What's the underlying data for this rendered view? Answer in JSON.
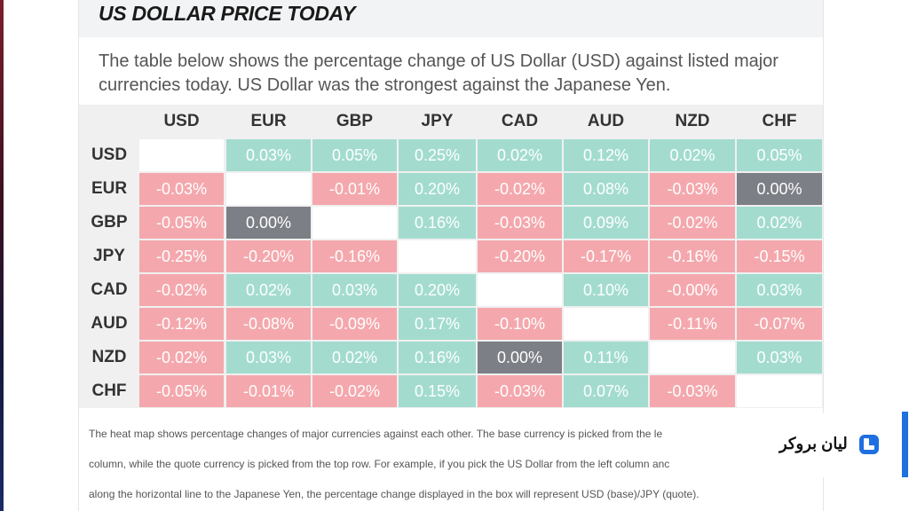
{
  "header": {
    "title": "US DOLLAR PRICE TODAY"
  },
  "intro": "The table below shows the percentage change of US Dollar (USD) against listed major currencies today. US Dollar was the strongest against the Japanese Yen.",
  "heatmap": {
    "columns": [
      "USD",
      "EUR",
      "GBP",
      "JPY",
      "CAD",
      "AUD",
      "NZD",
      "CHF"
    ],
    "rows": [
      {
        "label": "USD",
        "cells": [
          "",
          "0.03%",
          "0.05%",
          "0.25%",
          "0.02%",
          "0.12%",
          "0.02%",
          "0.05%"
        ]
      },
      {
        "label": "EUR",
        "cells": [
          "-0.03%",
          "",
          "-0.01%",
          "0.20%",
          "-0.02%",
          "0.08%",
          "-0.03%",
          "0.00%"
        ]
      },
      {
        "label": "GBP",
        "cells": [
          "-0.05%",
          "0.00%",
          "",
          "0.16%",
          "-0.03%",
          "0.09%",
          "-0.02%",
          "0.02%"
        ]
      },
      {
        "label": "JPY",
        "cells": [
          "-0.25%",
          "-0.20%",
          "-0.16%",
          "",
          "-0.20%",
          "-0.17%",
          "-0.16%",
          "-0.15%"
        ]
      },
      {
        "label": "CAD",
        "cells": [
          "-0.02%",
          "0.02%",
          "0.03%",
          "0.20%",
          "",
          "0.10%",
          "-0.00%",
          "0.03%"
        ]
      },
      {
        "label": "AUD",
        "cells": [
          "-0.12%",
          "-0.08%",
          "-0.09%",
          "0.17%",
          "-0.10%",
          "",
          "-0.11%",
          "-0.07%"
        ]
      },
      {
        "label": "NZD",
        "cells": [
          "-0.02%",
          "0.03%",
          "0.02%",
          "0.16%",
          "0.00%",
          "0.11%",
          "",
          "0.03%"
        ]
      },
      {
        "label": "CHF",
        "cells": [
          "-0.05%",
          "-0.01%",
          "-0.02%",
          "0.15%",
          "-0.03%",
          "0.07%",
          "-0.03%",
          ""
        ]
      }
    ],
    "colors": {
      "positive": "#a3dccf",
      "negative": "#f4a8ad",
      "zero": "#7d7f86"
    }
  },
  "footer": {
    "line1": "The heat map shows percentage changes of major currencies against each other. The base currency is picked from the le",
    "line2": "column, while the quote currency is picked from the top row. For example, if you pick the US Dollar from the left column anc",
    "line3": "along the horizontal line to the Japanese Yen, the percentage change displayed in the box will represent USD (base)/JPY (quote)."
  },
  "brand": {
    "name": "لیان بروکر",
    "logo_icon": "lian-broker-logo-icon",
    "accent": "#1e6fe0"
  }
}
